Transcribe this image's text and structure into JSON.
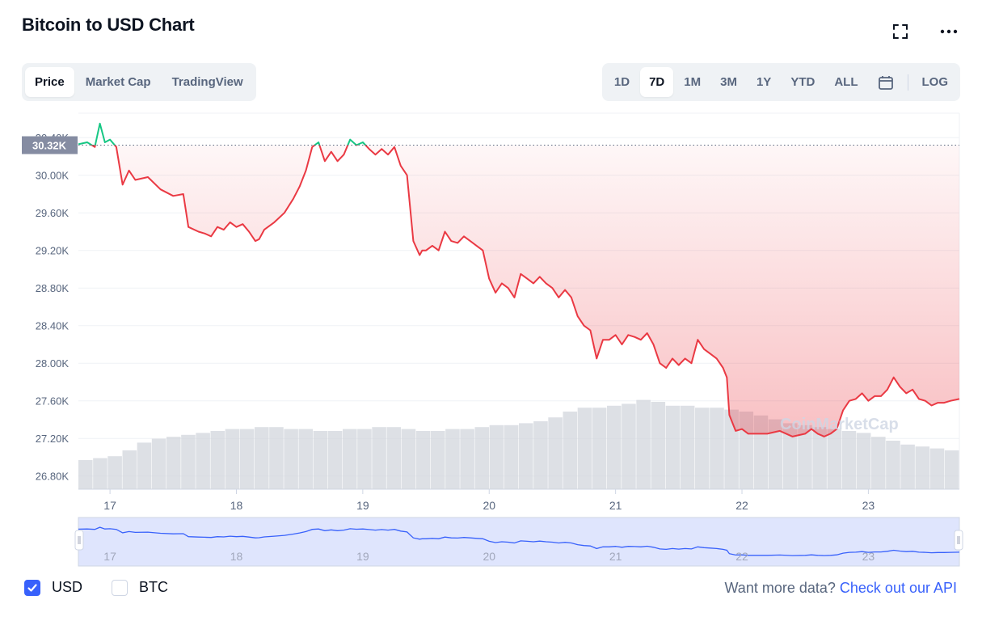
{
  "title": "Bitcoin to USD Chart",
  "tabs": [
    "Price",
    "Market Cap",
    "TradingView"
  ],
  "active_tab": "Price",
  "ranges": [
    "1D",
    "7D",
    "1M",
    "3M",
    "1Y",
    "YTD",
    "ALL"
  ],
  "active_range": "7D",
  "log_label": "LOG",
  "current_price_label": "30.32K",
  "watermark": "CoinMarketCap",
  "currencies": [
    {
      "label": "USD",
      "checked": true
    },
    {
      "label": "BTC",
      "checked": false
    }
  ],
  "more_data_text": "Want more data?",
  "more_data_link": "Check out our API",
  "colors": {
    "up": "#16c784",
    "down": "#ea3943",
    "brand": "#3861fb",
    "muted": "#58667e"
  },
  "chart_data": {
    "type": "line",
    "x_unit": "day",
    "xlim": [
      16.75,
      23.72
    ],
    "ylim": [
      26.66,
      30.66
    ],
    "y_ticks": [
      "26.80K",
      "27.20K",
      "27.60K",
      "28.00K",
      "28.40K",
      "28.80K",
      "29.20K",
      "29.60K",
      "30.00K",
      "30.40K"
    ],
    "x_ticks": [
      "17",
      "18",
      "19",
      "20",
      "21",
      "22",
      "23"
    ],
    "reference_value": 30.32,
    "series": [
      {
        "x": [
          16.75,
          16.82,
          16.88,
          16.92,
          16.96,
          17.0,
          17.05,
          17.1,
          17.15,
          17.2,
          17.3,
          17.4,
          17.5,
          17.58,
          17.62,
          17.7,
          17.75,
          17.8,
          17.85,
          17.9,
          17.95,
          18.0,
          18.05,
          18.1,
          18.15,
          18.18,
          18.22,
          18.3,
          18.38,
          18.45,
          18.5,
          18.55,
          18.6,
          18.65,
          18.7,
          18.75,
          18.8,
          18.85,
          18.9,
          18.95,
          19.0,
          19.05,
          19.1,
          19.15,
          19.2,
          19.25,
          19.3,
          19.35,
          19.4,
          19.45,
          19.47,
          19.5,
          19.55,
          19.6,
          19.65,
          19.7,
          19.75,
          19.8,
          19.85,
          19.9,
          19.95,
          20.0,
          20.05,
          20.1,
          20.15,
          20.2,
          20.25,
          20.3,
          20.35,
          20.4,
          20.45,
          20.5,
          20.55,
          20.6,
          20.65,
          20.7,
          20.75,
          20.8,
          20.85,
          20.9,
          20.95,
          21.0,
          21.05,
          21.1,
          21.15,
          21.2,
          21.25,
          21.3,
          21.35,
          21.4,
          21.45,
          21.5,
          21.55,
          21.6,
          21.65,
          21.7,
          21.75,
          21.8,
          21.85,
          21.88,
          21.9,
          21.95,
          22.0,
          22.05,
          22.1,
          22.2,
          22.3,
          22.4,
          22.5,
          22.55,
          22.6,
          22.65,
          22.7,
          22.75,
          22.8,
          22.85,
          22.9,
          22.95,
          23.0,
          23.05,
          23.1,
          23.15,
          23.2,
          23.25,
          23.3,
          23.35,
          23.4,
          23.45,
          23.5,
          23.55,
          23.6,
          23.65,
          23.72
        ],
        "y": [
          30.33,
          30.35,
          30.3,
          30.55,
          30.35,
          30.38,
          30.3,
          29.9,
          30.05,
          29.95,
          29.98,
          29.85,
          29.78,
          29.8,
          29.45,
          29.4,
          29.38,
          29.35,
          29.45,
          29.42,
          29.5,
          29.45,
          29.48,
          29.4,
          29.3,
          29.32,
          29.42,
          29.5,
          29.6,
          29.75,
          29.88,
          30.05,
          30.3,
          30.35,
          30.15,
          30.25,
          30.15,
          30.22,
          30.38,
          30.32,
          30.35,
          30.28,
          30.22,
          30.28,
          30.22,
          30.3,
          30.1,
          30.0,
          29.3,
          29.15,
          29.2,
          29.2,
          29.25,
          29.2,
          29.4,
          29.3,
          29.28,
          29.35,
          29.3,
          29.25,
          29.2,
          28.9,
          28.75,
          28.85,
          28.8,
          28.7,
          28.95,
          28.9,
          28.85,
          28.92,
          28.85,
          28.8,
          28.7,
          28.78,
          28.7,
          28.5,
          28.4,
          28.35,
          28.05,
          28.25,
          28.25,
          28.3,
          28.2,
          28.3,
          28.28,
          28.25,
          28.32,
          28.2,
          28.0,
          27.95,
          28.05,
          27.98,
          28.05,
          28.0,
          28.25,
          28.15,
          28.1,
          28.05,
          27.95,
          27.85,
          27.45,
          27.28,
          27.3,
          27.25,
          27.25,
          27.25,
          27.28,
          27.22,
          27.25,
          27.3,
          27.25,
          27.22,
          27.25,
          27.3,
          27.5,
          27.6,
          27.62,
          27.68,
          27.6,
          27.65,
          27.65,
          27.72,
          27.85,
          27.75,
          27.68,
          27.72,
          27.62,
          27.6,
          27.55,
          27.58,
          27.58,
          27.6,
          27.62
        ]
      }
    ],
    "volume": [
      0.15,
      0.16,
      0.17,
      0.2,
      0.24,
      0.26,
      0.27,
      0.28,
      0.29,
      0.3,
      0.31,
      0.31,
      0.32,
      0.32,
      0.31,
      0.31,
      0.3,
      0.3,
      0.31,
      0.31,
      0.32,
      0.32,
      0.31,
      0.3,
      0.3,
      0.31,
      0.31,
      0.32,
      0.33,
      0.33,
      0.34,
      0.35,
      0.37,
      0.4,
      0.42,
      0.42,
      0.43,
      0.44,
      0.46,
      0.45,
      0.43,
      0.43,
      0.42,
      0.42,
      0.41,
      0.4,
      0.38,
      0.36,
      0.34,
      0.33,
      0.32,
      0.31,
      0.3,
      0.29,
      0.27,
      0.25,
      0.23,
      0.22,
      0.21,
      0.2
    ],
    "navigator": {
      "x_ticks": [
        "17",
        "18",
        "19",
        "20",
        "21",
        "22",
        "23"
      ]
    }
  }
}
